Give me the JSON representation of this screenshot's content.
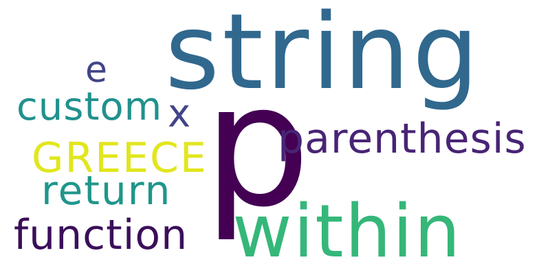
{
  "words": {
    "string": {
      "text": "string",
      "color": "#31688e"
    },
    "p": {
      "text": "p",
      "color": "#440154"
    },
    "within": {
      "text": "within",
      "color": "#35b779"
    },
    "parenthesis": {
      "text": "parenthesis",
      "color": "#482475"
    },
    "custom": {
      "text": "custom",
      "color": "#21918c"
    },
    "x": {
      "text": "x",
      "color": "#414487"
    },
    "e": {
      "text": "e",
      "color": "#414487"
    },
    "greece": {
      "text": "GREECE",
      "color": "#e1e61d"
    },
    "return": {
      "text": "return",
      "color": "#1f968b"
    },
    "function": {
      "text": "function",
      "color": "#3b0f5a"
    }
  }
}
